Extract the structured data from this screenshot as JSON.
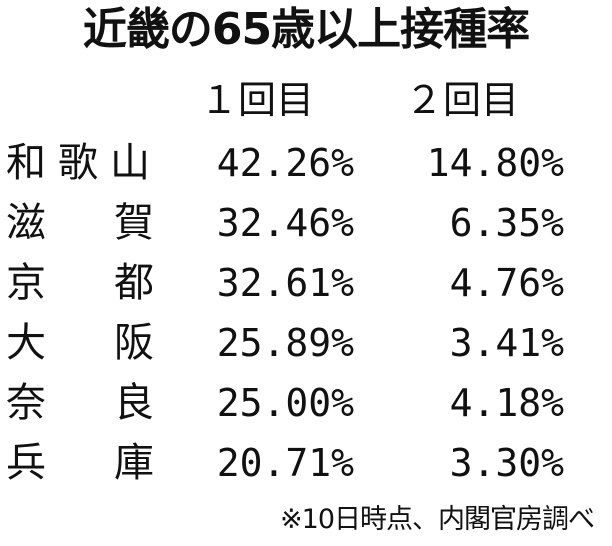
{
  "title": "近畿の65歳以上接種率",
  "columns": {
    "dose1": "１回目",
    "dose2": "２回目"
  },
  "rows": [
    {
      "chars": [
        "和",
        "歌",
        "山"
      ],
      "dose1": "42.26%",
      "dose2": "14.80%"
    },
    {
      "chars": [
        "滋",
        "賀"
      ],
      "dose1": "32.46%",
      "dose2": "6.35%"
    },
    {
      "chars": [
        "京",
        "都"
      ],
      "dose1": "32.61%",
      "dose2": "4.76%"
    },
    {
      "chars": [
        "大",
        "阪"
      ],
      "dose1": "25.89%",
      "dose2": "3.41%"
    },
    {
      "chars": [
        "奈",
        "良"
      ],
      "dose1": "25.00%",
      "dose2": "4.18%"
    },
    {
      "chars": [
        "兵",
        "庫"
      ],
      "dose1": "20.71%",
      "dose2": "3.30%"
    }
  ],
  "note": "※10日時点、内閣官房調べ"
}
